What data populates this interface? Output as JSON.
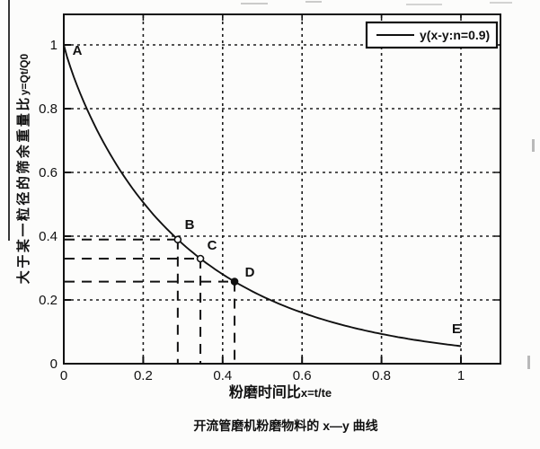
{
  "chart_data": {
    "type": "line",
    "caption": "开流管磨机粉磨物料的 x—y 曲线",
    "xlabel": "粉磨时间比x=t/te",
    "ylabel": "大于某一粒径的筛余重量比y=Qt/Q0",
    "legend": {
      "label": "y(x-y:n=0.9)",
      "position": "top-right"
    },
    "xlim": [
      0,
      1.1
    ],
    "ylim": [
      0,
      1.095
    ],
    "xticks": [
      0,
      0.2,
      0.4,
      0.6,
      0.8,
      1
    ],
    "yticks": [
      0,
      0.2,
      0.4,
      0.6,
      0.8,
      1
    ],
    "xtick_labels": [
      "0",
      "0.2",
      "0.4",
      "0.6",
      "0.8",
      "1"
    ],
    "ytick_labels": [
      "0",
      "0.2",
      "0.4",
      "0.6",
      "0.8",
      "1"
    ],
    "grid": {
      "visible": true,
      "style": "dotted",
      "interval": 0.2
    },
    "curve": {
      "model": "y = exp(-k*x^n)",
      "k": 2.9,
      "n": 0.9,
      "x_min": 0,
      "x_max": 1
    },
    "points": [
      {
        "label": "A",
        "x": 0,
        "y": 1.0,
        "marker": "none",
        "guides": false
      },
      {
        "label": "B",
        "x": 0.287,
        "y": 0.389,
        "marker": "open-circle",
        "guides": true
      },
      {
        "label": "C",
        "x": 0.344,
        "y": 0.33,
        "marker": "open-circle",
        "guides": true
      },
      {
        "label": "D",
        "x": 0.43,
        "y": 0.257,
        "marker": "filled-circle",
        "guides": true
      },
      {
        "label": "E",
        "x": 1.0,
        "y": 0.055,
        "marker": "none",
        "guides": false
      }
    ]
  },
  "axis_text": {
    "xlabel_prefix": "粉磨时间比",
    "xlabel_suffix": "x=t/te",
    "ylabel_prefix": "大于某一粒径的筛余重量比",
    "ylabel_suffix": "y=Qt/Q0"
  }
}
